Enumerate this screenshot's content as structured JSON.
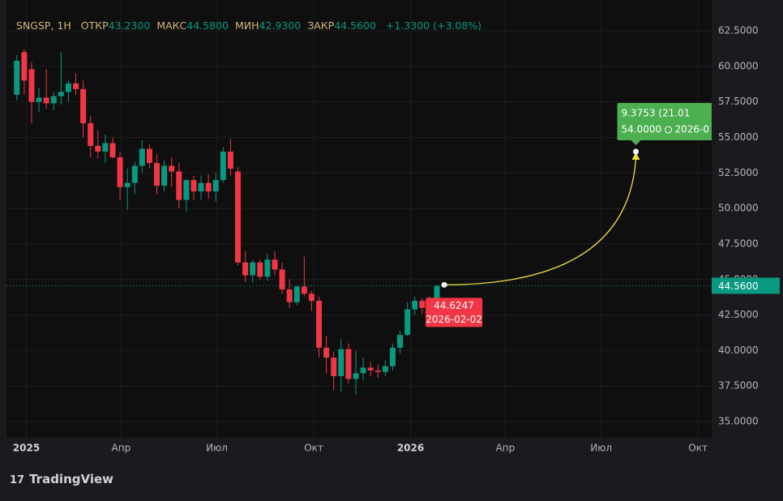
{
  "chart_data": {
    "type": "candlestick",
    "title": "SNGSP, 1Н",
    "ohlc_legend": [
      {
        "label": "ОТКР",
        "value": "43.2300"
      },
      {
        "label": "МАКС",
        "value": "44.5800"
      },
      {
        "label": "МИН",
        "value": "42.9300"
      },
      {
        "label": "ЗАКР",
        "value": "44.5600"
      }
    ],
    "change": "+1.3300 (+3.08%)",
    "up_color": "#089981",
    "down_color": "#f23645",
    "x": [
      "2024-12-23",
      "2024-12-30",
      "2025-01-06",
      "2025-01-13",
      "2025-01-20",
      "2025-01-27",
      "2025-02-03",
      "2025-02-10",
      "2025-02-17",
      "2025-02-24",
      "2025-03-03",
      "2025-03-10",
      "2025-03-17",
      "2025-03-24",
      "2025-03-31",
      "2025-04-07",
      "2025-04-14",
      "2025-04-21",
      "2025-04-28",
      "2025-05-05",
      "2025-05-12",
      "2025-05-19",
      "2025-05-26",
      "2025-06-02",
      "2025-06-09",
      "2025-06-16",
      "2025-06-23",
      "2025-06-30",
      "2025-07-07",
      "2025-07-14",
      "2025-07-21",
      "2025-07-28",
      "2025-08-04",
      "2025-08-11",
      "2025-08-18",
      "2025-08-25",
      "2025-09-01",
      "2025-09-08",
      "2025-09-15",
      "2025-09-22",
      "2025-09-29",
      "2025-10-06",
      "2025-10-13",
      "2025-10-20",
      "2025-10-27",
      "2025-11-03",
      "2025-11-10",
      "2025-11-17",
      "2025-11-24",
      "2025-12-01",
      "2025-12-08",
      "2025-12-15",
      "2025-12-22",
      "2025-12-29",
      "2026-01-05",
      "2026-01-12",
      "2026-01-19",
      "2026-01-26"
    ],
    "open": [
      58.0,
      61.0,
      59.8,
      57.5,
      57.8,
      57.4,
      57.9,
      58.2,
      58.8,
      58.4,
      56.0,
      54.4,
      54.0,
      54.6,
      53.6,
      51.5,
      51.8,
      53.0,
      54.2,
      53.2,
      51.6,
      53.0,
      52.6,
      50.6,
      52.0,
      51.2,
      51.8,
      51.2,
      52.0,
      54.0,
      52.6,
      46.2,
      45.3,
      46.2,
      45.2,
      46.4,
      45.7,
      44.3,
      43.4,
      44.5,
      44.0,
      43.5,
      40.2,
      39.5,
      38.2,
      40.1,
      38.0,
      38.4,
      38.8,
      38.6,
      38.5,
      38.9,
      40.2,
      41.1,
      42.9,
      43.5,
      43.0,
      43.23
    ],
    "high": [
      60.8,
      61.2,
      60.3,
      58.5,
      59.8,
      58.2,
      61.0,
      59.0,
      59.5,
      59.0,
      56.5,
      55.5,
      55.2,
      55.0,
      54.0,
      52.8,
      53.3,
      54.8,
      54.5,
      53.8,
      53.4,
      53.6,
      53.2,
      52.0,
      52.3,
      52.3,
      52.4,
      52.5,
      54.3,
      54.9,
      52.9,
      47.0,
      46.4,
      46.4,
      46.8,
      47.0,
      46.2,
      45.0,
      44.6,
      46.6,
      44.2,
      43.8,
      41.0,
      39.9,
      40.8,
      40.5,
      40.0,
      39.5,
      39.2,
      39.0,
      39.3,
      40.5,
      41.4,
      43.4,
      43.8,
      43.7,
      43.8,
      44.58
    ],
    "low": [
      57.6,
      58.0,
      56.0,
      56.8,
      57.0,
      56.9,
      57.3,
      57.5,
      58.0,
      55.0,
      53.6,
      53.5,
      53.2,
      53.5,
      50.6,
      49.9,
      51.0,
      52.5,
      52.8,
      51.0,
      51.2,
      51.5,
      50.0,
      49.8,
      50.6,
      50.6,
      50.7,
      50.5,
      51.8,
      52.3,
      46.0,
      44.8,
      44.8,
      45.0,
      44.9,
      45.3,
      44.0,
      43.0,
      43.2,
      43.8,
      42.8,
      39.5,
      38.4,
      37.2,
      37.1,
      37.7,
      36.9,
      37.9,
      38.2,
      38.1,
      38.2,
      38.6,
      39.8,
      41.0,
      42.5,
      42.6,
      42.6,
      42.93
    ],
    "close": [
      60.4,
      59.0,
      57.5,
      57.8,
      57.4,
      57.9,
      58.2,
      58.8,
      58.4,
      56.0,
      54.4,
      54.0,
      54.6,
      53.6,
      51.5,
      51.8,
      53.0,
      54.2,
      53.2,
      51.6,
      53.0,
      52.6,
      50.6,
      52.0,
      51.2,
      51.8,
      51.2,
      52.0,
      54.0,
      52.8,
      46.2,
      45.3,
      46.2,
      45.2,
      46.4,
      45.7,
      44.3,
      43.4,
      44.5,
      44.0,
      43.5,
      40.2,
      39.5,
      38.2,
      40.1,
      38.0,
      38.4,
      38.8,
      38.6,
      38.5,
      38.9,
      40.2,
      41.1,
      42.9,
      43.5,
      43.0,
      43.23,
      44.56
    ],
    "xlim": [
      "2024-12-07",
      "2026-10-14"
    ],
    "xticks": [
      {
        "value": "2025-01-01",
        "label": "2025"
      },
      {
        "value": "2025-04-01",
        "label": "Апр"
      },
      {
        "value": "2025-07-01",
        "label": "Июл"
      },
      {
        "value": "2025-10-01",
        "label": "Окт"
      },
      {
        "value": "2026-01-01",
        "label": "2026"
      },
      {
        "value": "2026-04-01",
        "label": "Апр"
      },
      {
        "value": "2026-07-01",
        "label": "Июл"
      },
      {
        "value": "2026-10-01",
        "label": "Окт"
      }
    ],
    "ylim": [
      33.86,
      64.67
    ],
    "yticks": [
      {
        "value": 62.5,
        "label": "62.5000"
      },
      {
        "value": 60,
        "label": "60.0000"
      },
      {
        "value": 57.5,
        "label": "57.5000"
      },
      {
        "value": 55,
        "label": "55.0000"
      },
      {
        "value": 52.5,
        "label": "52.5000"
      },
      {
        "value": 50,
        "label": "50.0000"
      },
      {
        "value": 47.5,
        "label": "47.5000"
      },
      {
        "value": 45,
        "label": "45.0000"
      },
      {
        "value": 42.5,
        "label": "42.5000"
      },
      {
        "value": 40,
        "label": "40.0000"
      },
      {
        "value": 37.5,
        "label": "37.5000"
      },
      {
        "value": 35,
        "label": "35.0000"
      }
    ],
    "grid": true,
    "last_price": {
      "value": 44.56,
      "label": "44.5600"
    },
    "projection": {
      "color": "#f0e040",
      "start": {
        "x": "2026-02-02",
        "price": 44.6247,
        "price_label": "44.6247",
        "date_label": "2026-02-02"
      },
      "end": {
        "x": "2026-08-03",
        "price": 54.0,
        "price_label": "54.0000",
        "date_label": "2026-0",
        "change_label": "9.3753 (21.01"
      }
    }
  },
  "footer": {
    "brand": "TradingView"
  }
}
